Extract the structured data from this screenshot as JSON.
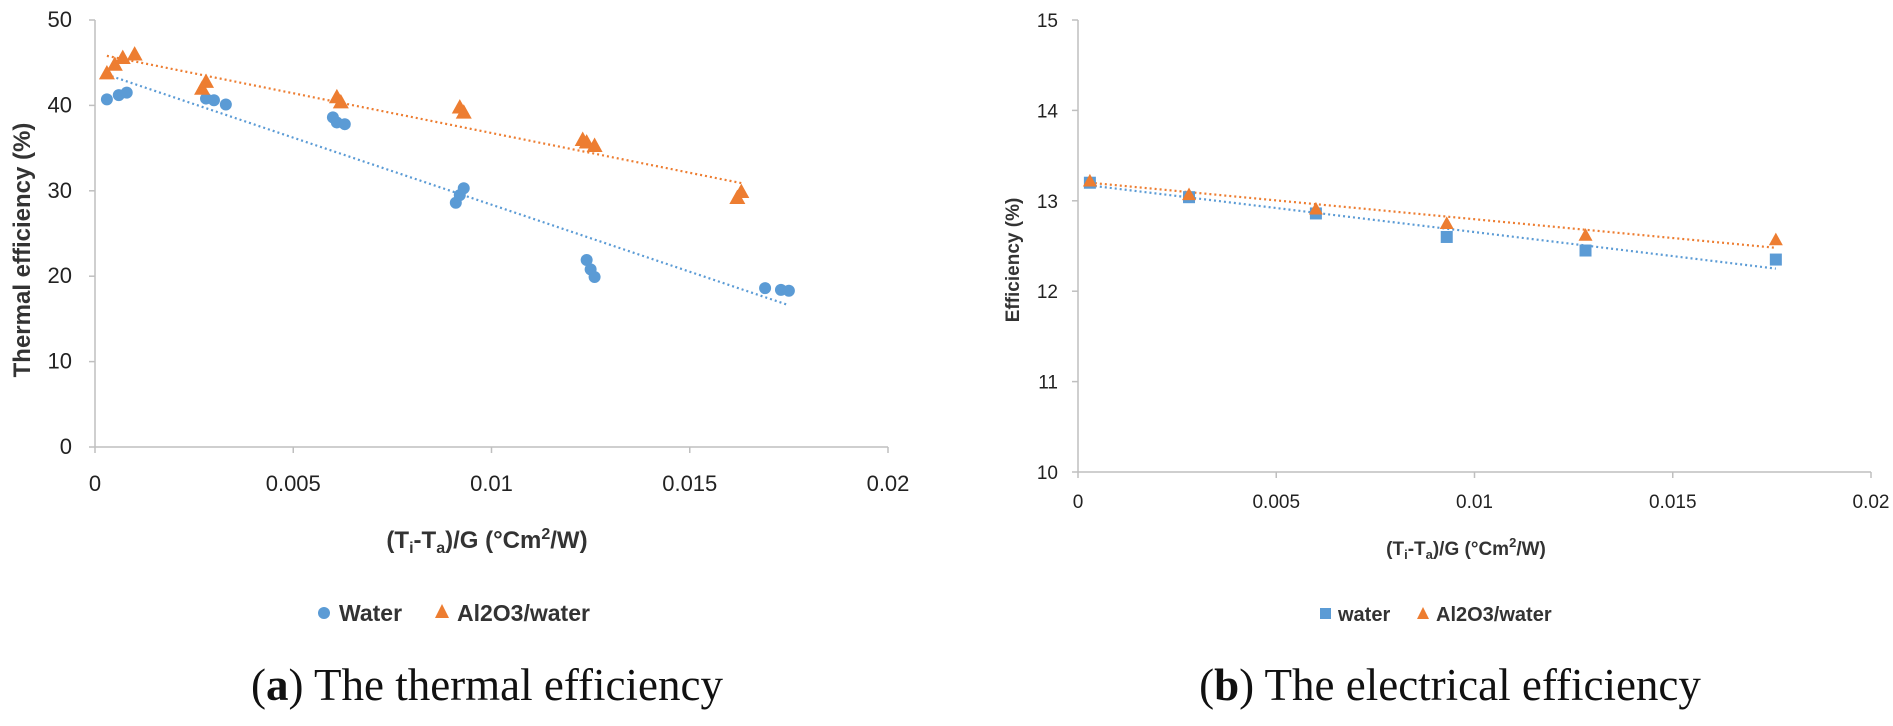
{
  "chart_data": [
    {
      "type": "scatter",
      "caption": {
        "letter": "a",
        "text": "The thermal efficiency"
      },
      "xlabel": {
        "base": "(T",
        "sub1": "i",
        "mid": "-T",
        "sub2": "a",
        "tail": ")/G (°Cm",
        "sup": "2",
        "end": "/W)"
      },
      "ylabel": "Thermal efficiency (%)",
      "xlim": [
        0,
        0.02
      ],
      "ylim": [
        0,
        50
      ],
      "xticks": [
        0,
        0.005,
        0.01,
        0.015,
        0.02
      ],
      "xtick_labels": [
        "0",
        "0.005",
        "0.01",
        "0.015",
        "0.02"
      ],
      "yticks": [
        0,
        10,
        20,
        30,
        40,
        50
      ],
      "ytick_labels": [
        "0",
        "10",
        "20",
        "30",
        "40",
        "50"
      ],
      "legend_position": "bottom",
      "series": [
        {
          "name": "Water",
          "marker": "circle",
          "color": "#5B9BD5",
          "x": [
            0.0003,
            0.0006,
            0.0008,
            0.0028,
            0.003,
            0.0033,
            0.006,
            0.0061,
            0.0063,
            0.0091,
            0.0092,
            0.0093,
            0.0124,
            0.0125,
            0.0126,
            0.0169,
            0.0173,
            0.0175
          ],
          "y": [
            40.7,
            41.2,
            41.5,
            40.8,
            40.6,
            40.1,
            38.6,
            38.0,
            37.8,
            28.6,
            29.5,
            30.3,
            21.9,
            20.8,
            19.9,
            18.6,
            18.4,
            18.3
          ],
          "trendline": {
            "x": [
              0.0003,
              0.0175
            ],
            "y": [
              43.6,
              16.6
            ]
          }
        },
        {
          "name": "Al2O3/water",
          "marker": "triangle",
          "color": "#ED7D31",
          "x": [
            0.0003,
            0.0005,
            0.0007,
            0.001,
            0.0027,
            0.0028,
            0.0061,
            0.0062,
            0.0092,
            0.0093,
            0.0123,
            0.0124,
            0.0126,
            0.0162,
            0.0163
          ],
          "y": [
            43.8,
            44.8,
            45.6,
            46.0,
            42.0,
            42.8,
            41.0,
            40.4,
            39.8,
            39.2,
            36.0,
            35.7,
            35.3,
            29.2,
            29.9
          ],
          "trendline": {
            "x": [
              0.0003,
              0.0163
            ],
            "y": [
              45.8,
              30.9
            ]
          }
        }
      ]
    },
    {
      "type": "scatter",
      "caption": {
        "letter": "b",
        "text": "The electrical efficiency"
      },
      "xlabel": {
        "base": "(T",
        "sub1": "i",
        "mid": "-T",
        "sub2": "a",
        "tail": ")/G  (°Cm",
        "sup": "2",
        "end": "/W)"
      },
      "ylabel": "Efficiency (%)",
      "xlim": [
        0,
        0.02
      ],
      "ylim": [
        10,
        15
      ],
      "xticks": [
        0,
        0.005,
        0.01,
        0.015,
        0.02
      ],
      "xtick_labels": [
        "0",
        "0.005",
        "0.01",
        "0.015",
        "0.02"
      ],
      "yticks": [
        10,
        11,
        12,
        13,
        14,
        15
      ],
      "ytick_labels": [
        "10",
        "11",
        "12",
        "13",
        "14",
        "15"
      ],
      "legend_position": "bottom",
      "series": [
        {
          "name": "water",
          "marker": "square",
          "color": "#5B9BD5",
          "x": [
            0.0003,
            0.0028,
            0.006,
            0.0093,
            0.0128,
            0.0176
          ],
          "y": [
            13.2,
            13.04,
            12.86,
            12.6,
            12.45,
            12.35
          ],
          "trendline": {
            "x": [
              0.0003,
              0.0176
            ],
            "y": [
              13.17,
              12.25
            ]
          }
        },
        {
          "name": "Al2O3/water",
          "marker": "triangle",
          "color": "#ED7D31",
          "x": [
            0.0003,
            0.0028,
            0.006,
            0.0093,
            0.0128,
            0.0176
          ],
          "y": [
            13.22,
            13.07,
            12.91,
            12.75,
            12.62,
            12.57
          ],
          "trendline": {
            "x": [
              0.0003,
              0.0176
            ],
            "y": [
              13.2,
              12.48
            ]
          }
        }
      ]
    }
  ]
}
